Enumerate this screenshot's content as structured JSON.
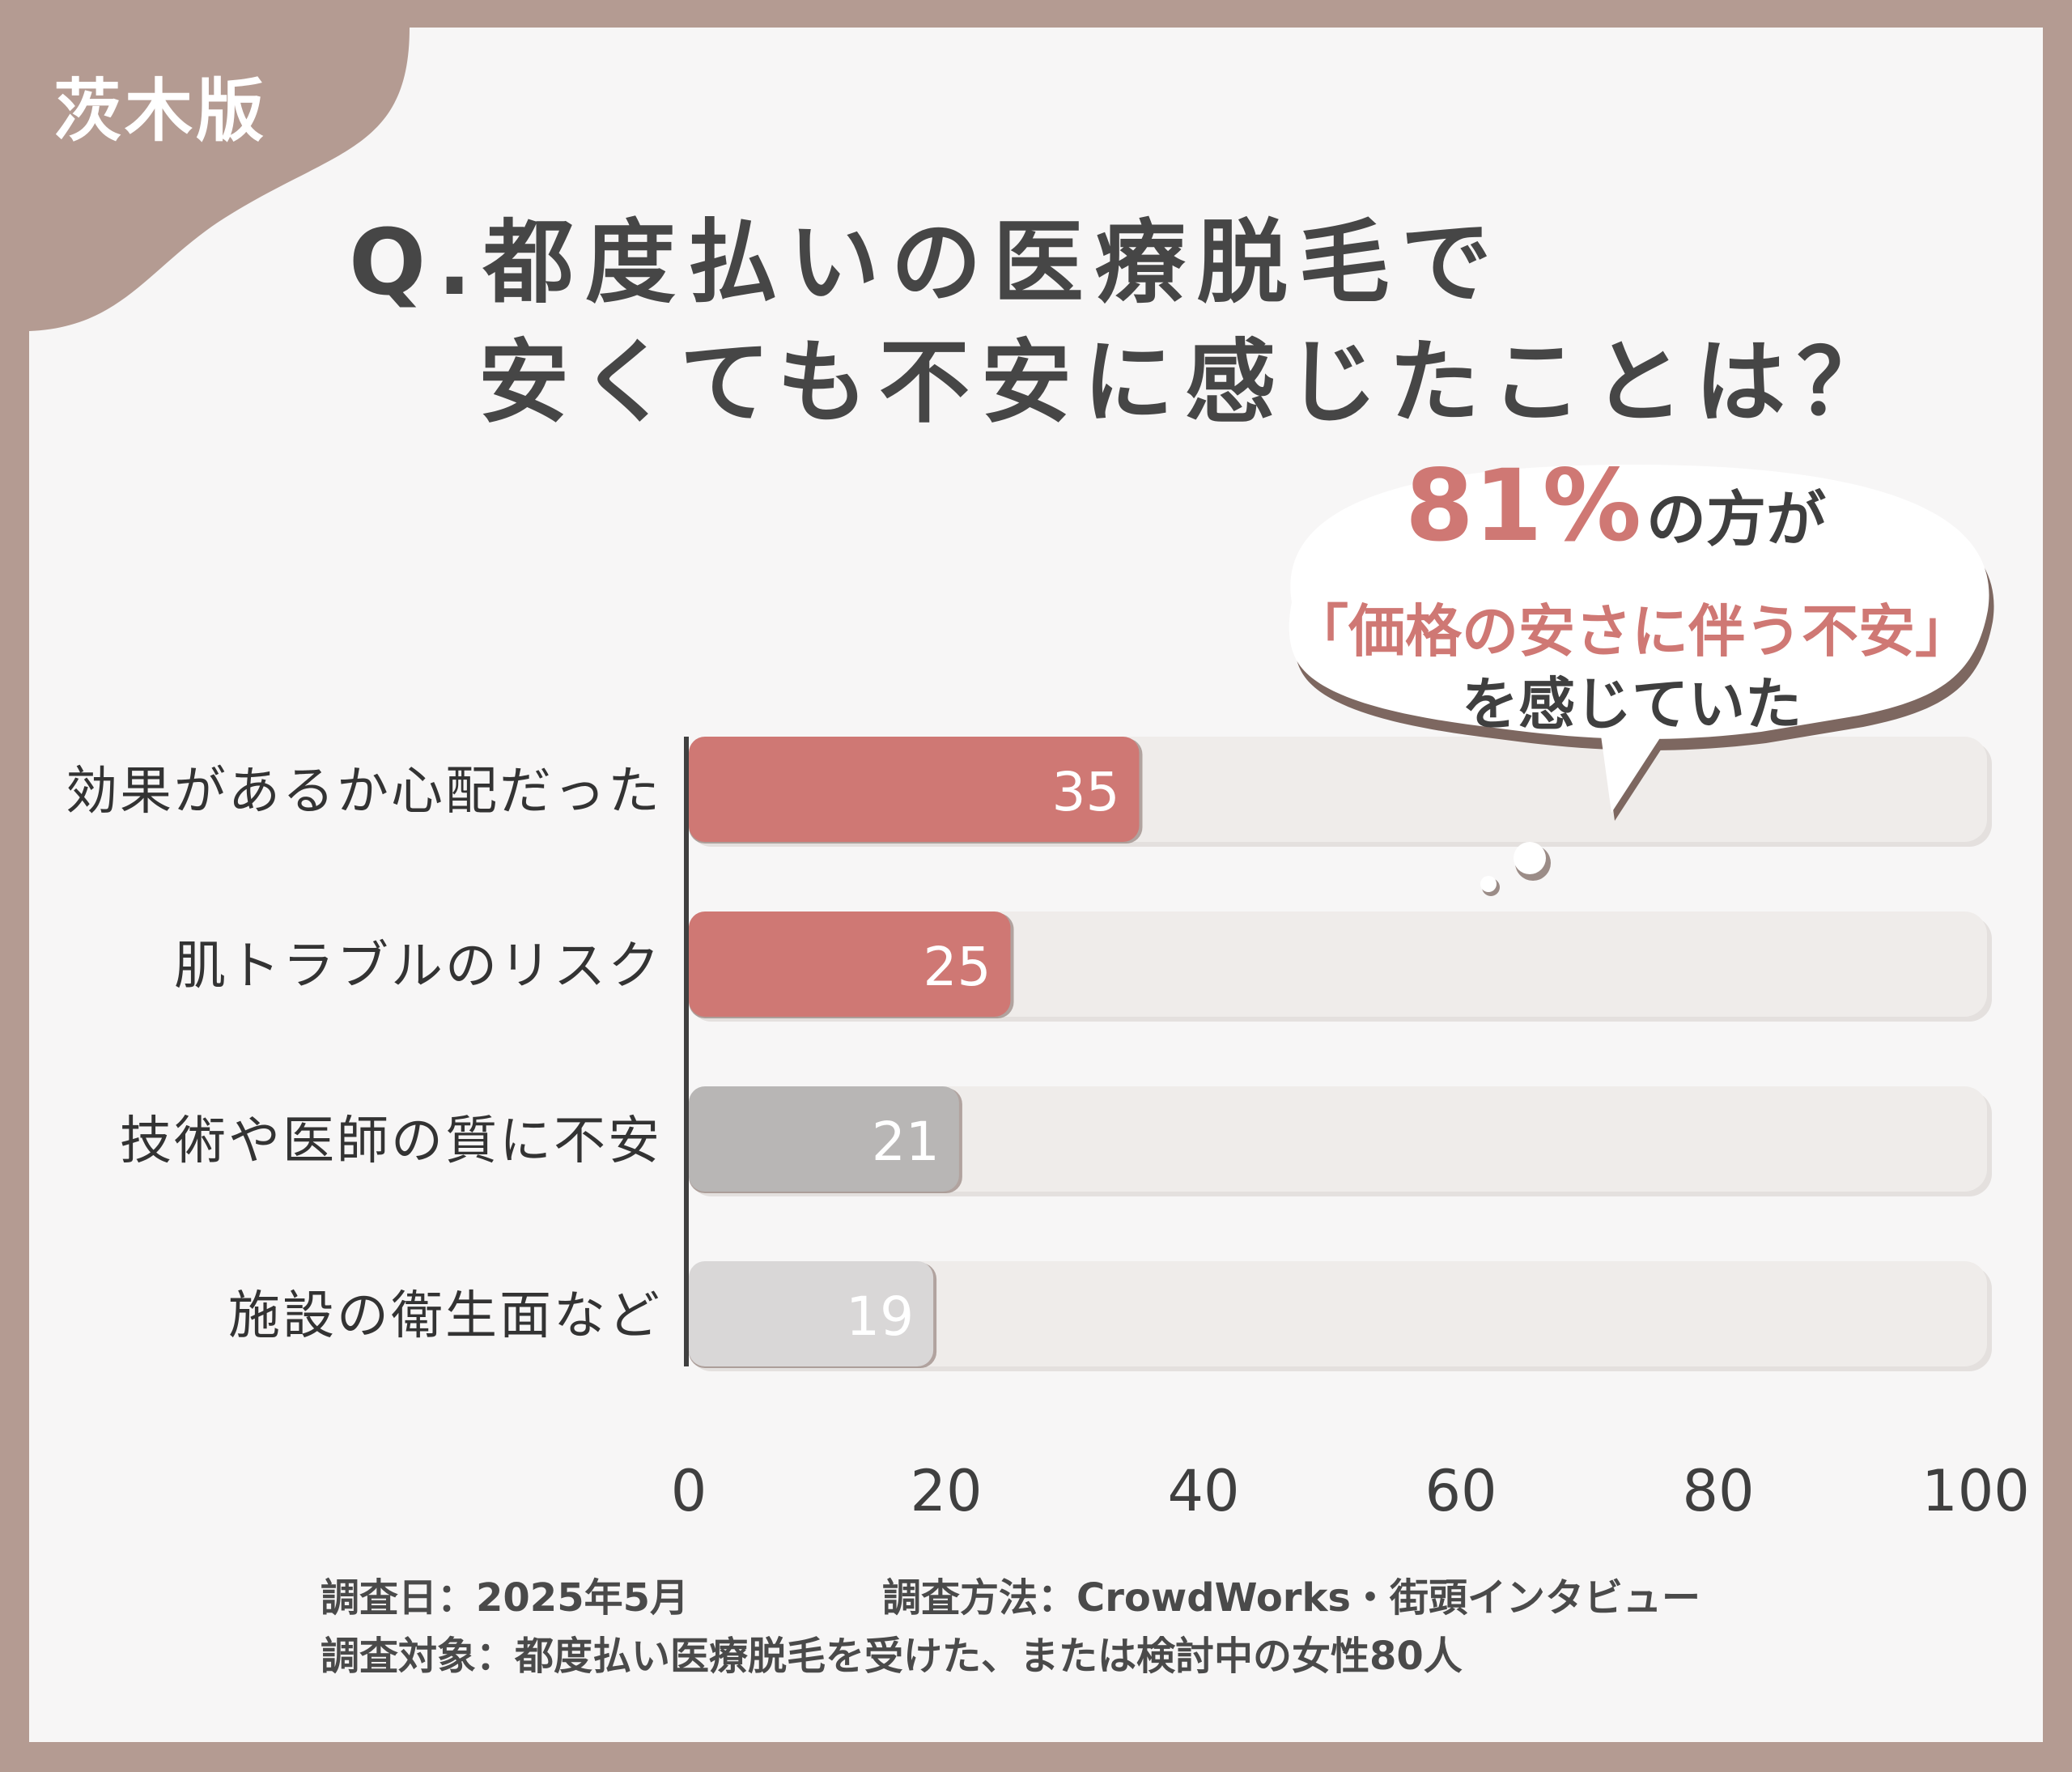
{
  "badge": {
    "text": "茨木版"
  },
  "title": {
    "line1": "Q.都度払いの医療脱毛で",
    "line2": "安くても不安に感じたことは？"
  },
  "callout": {
    "percent": "81%",
    "line1_rest": "の方が",
    "line2": "「価格の安さに伴う不安」",
    "line3": "を感じていた"
  },
  "chart_data": {
    "type": "bar",
    "orientation": "horizontal",
    "categories": [
      "効果があるか心配だった",
      "肌トラブルのリスク",
      "技術や医師の質に不安",
      "施設の衛生面など"
    ],
    "values": [
      35,
      25,
      21,
      19
    ],
    "value_labels": [
      "35",
      "25",
      "21",
      "19"
    ],
    "xlim": [
      0,
      100
    ],
    "xticks": [
      "0",
      "20",
      "40",
      "60",
      "80",
      "100"
    ],
    "grid": false,
    "colors": {
      "highlight": "#cf7874",
      "medium": "#b8b6b5",
      "light": "#d9d7d7",
      "track": "#efecea"
    },
    "bar_colors": [
      "#cf7874",
      "#cf7874",
      "#b8b6b5",
      "#d9d7d7"
    ]
  },
  "footer": {
    "date": "調査日：2025年5月",
    "method": "調査方法：CrowdWorks・街頭インタビュー",
    "target": "調査対象：都度払い医療脱毛を受けた、または検討中の女性80人"
  }
}
